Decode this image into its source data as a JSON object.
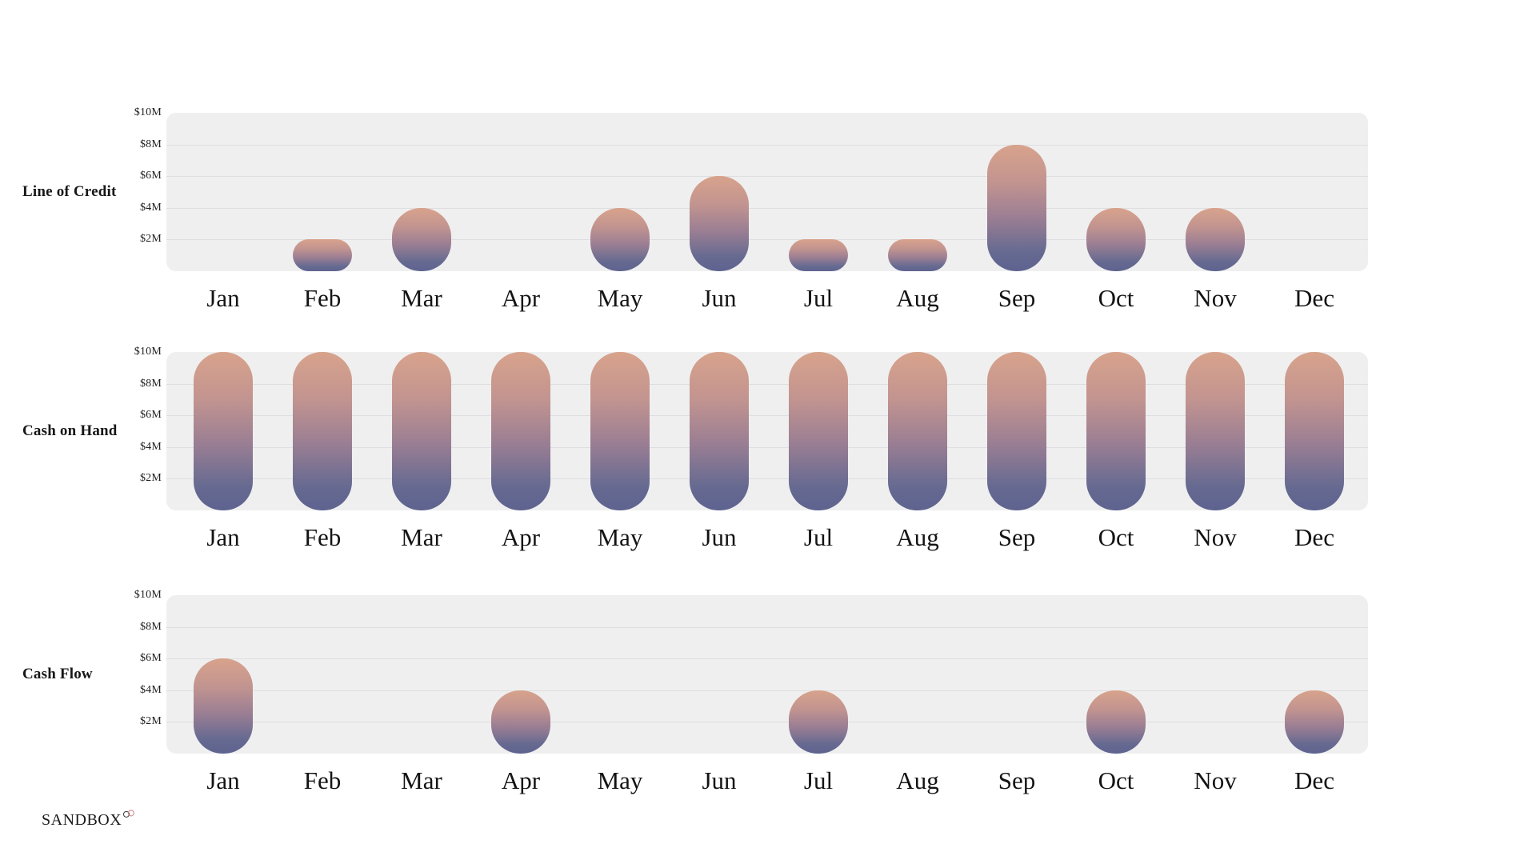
{
  "logo": {
    "text": "SANDBOX",
    "mark": "infinity-icon"
  },
  "axis": {
    "tick_labels": [
      "$10M",
      "$8M",
      "$6M",
      "$4M",
      "$2M"
    ],
    "months": [
      "Jan",
      "Feb",
      "Mar",
      "Apr",
      "May",
      "Jun",
      "Jul",
      "Aug",
      "Sep",
      "Oct",
      "Nov",
      "Dec"
    ]
  },
  "colors": {
    "plot_background": "#efeff0",
    "gridline": "#dedee0",
    "bar_gradient_top": "#d8a38c",
    "bar_gradient_mid": "#9a7e93",
    "bar_gradient_bottom": "#5e638f",
    "text": "#1b1b1b"
  },
  "chart_data": [
    {
      "type": "bar",
      "title": "Line of Credit",
      "categories": [
        "Jan",
        "Feb",
        "Mar",
        "Apr",
        "May",
        "Jun",
        "Jul",
        "Aug",
        "Sep",
        "Oct",
        "Nov",
        "Dec"
      ],
      "values": [
        0,
        2,
        4,
        0,
        4,
        6,
        2,
        2,
        8,
        4,
        4,
        0
      ],
      "value_unit": "$M",
      "ylim": [
        0,
        10
      ],
      "ytick_labels": [
        "$2M",
        "$4M",
        "$6M",
        "$8M",
        "$10M"
      ],
      "grid": true,
      "legend": "none"
    },
    {
      "type": "bar",
      "title": "Cash on Hand",
      "categories": [
        "Jan",
        "Feb",
        "Mar",
        "Apr",
        "May",
        "Jun",
        "Jul",
        "Aug",
        "Sep",
        "Oct",
        "Nov",
        "Dec"
      ],
      "values": [
        10,
        10,
        10,
        10,
        10,
        10,
        10,
        10,
        10,
        10,
        10,
        10
      ],
      "value_unit": "$M",
      "ylim": [
        0,
        10
      ],
      "ytick_labels": [
        "$2M",
        "$4M",
        "$6M",
        "$8M",
        "$10M"
      ],
      "grid": true,
      "legend": "none"
    },
    {
      "type": "bar",
      "title": "Cash Flow",
      "categories": [
        "Jan",
        "Feb",
        "Mar",
        "Apr",
        "May",
        "Jun",
        "Jul",
        "Aug",
        "Sep",
        "Oct",
        "Nov",
        "Dec"
      ],
      "values": [
        6,
        0,
        0,
        4,
        0,
        0,
        4,
        0,
        0,
        4,
        0,
        4
      ],
      "value_unit": "$M",
      "ylim": [
        0,
        10
      ],
      "ytick_labels": [
        "$2M",
        "$4M",
        "$6M",
        "$8M",
        "$10M"
      ],
      "grid": true,
      "legend": "none"
    }
  ]
}
